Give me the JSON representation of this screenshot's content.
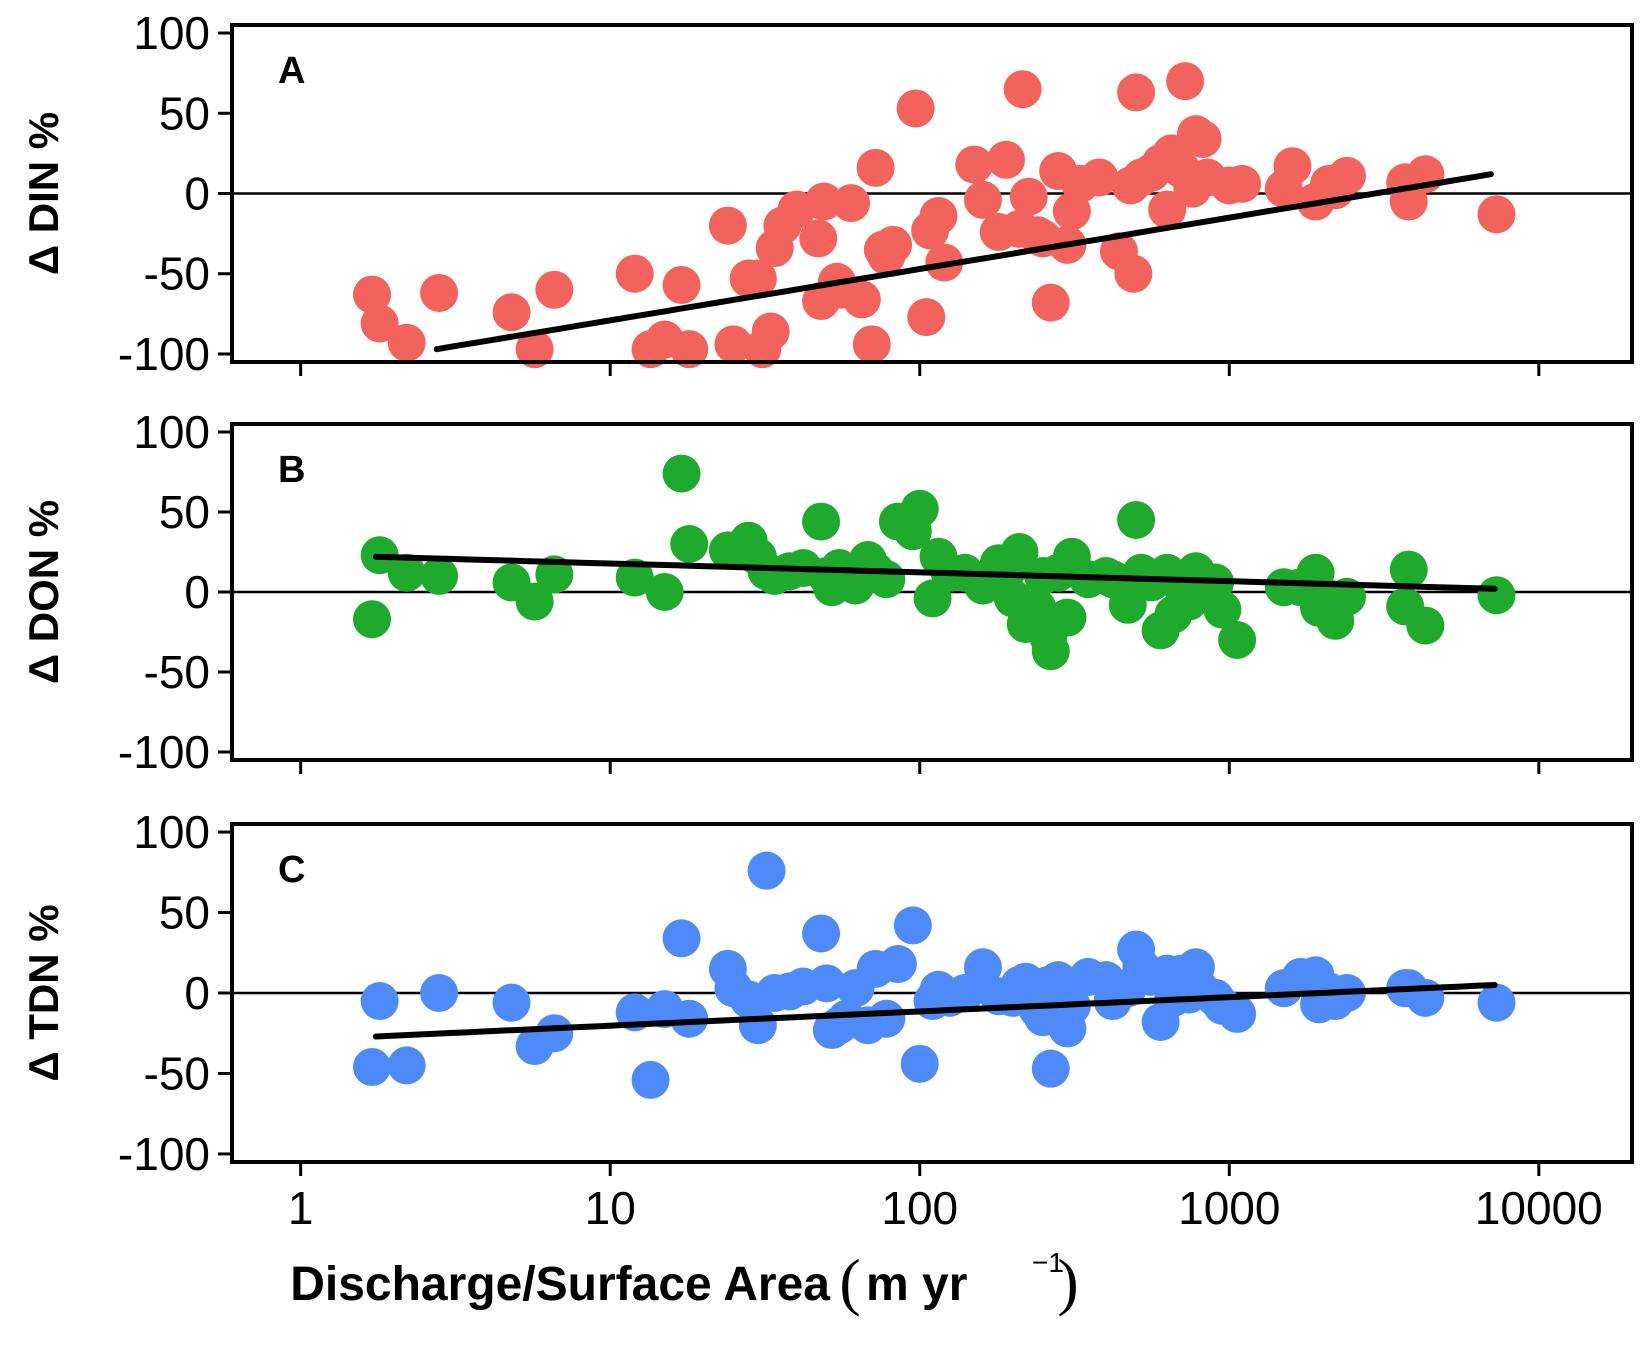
{
  "figure": {
    "xlabel_main": "Discharge/Surface Area",
    "xlabel_unit": "m yr",
    "xlabel_sup": "−1"
  },
  "chart_data": [
    {
      "type": "scatter",
      "panel": "A",
      "ylabel": "Δ DIN %",
      "xscale": "log",
      "xlim": [
        0.6,
        20000
      ],
      "ylim": [
        -105,
        105
      ],
      "xticks": [
        "1",
        "10",
        "100",
        "1000",
        "10000"
      ],
      "yticks": [
        "100",
        "50",
        "0",
        "-50",
        "-100"
      ],
      "color": "#F2635D",
      "zero_line": true,
      "points": [
        [
          1.7,
          -63
        ],
        [
          1.8,
          -81
        ],
        [
          2.2,
          -93
        ],
        [
          2.8,
          -62
        ],
        [
          4.8,
          -74
        ],
        [
          5.7,
          -97
        ],
        [
          6.6,
          -60
        ],
        [
          12,
          -50
        ],
        [
          13.5,
          -97
        ],
        [
          15,
          -91
        ],
        [
          17,
          -57
        ],
        [
          18,
          -97
        ],
        [
          24,
          -20
        ],
        [
          25,
          -94
        ],
        [
          28,
          -53
        ],
        [
          30,
          -53
        ],
        [
          31,
          -97
        ],
        [
          33,
          -86
        ],
        [
          34,
          -34
        ],
        [
          36,
          -20
        ],
        [
          40,
          -10
        ],
        [
          47,
          -28
        ],
        [
          48,
          -67
        ],
        [
          49,
          -5
        ],
        [
          54,
          -55
        ],
        [
          55,
          -60
        ],
        [
          60,
          -6
        ],
        [
          65,
          -66
        ],
        [
          70,
          -94
        ],
        [
          72,
          16
        ],
        [
          76,
          -35
        ],
        [
          78,
          -39
        ],
        [
          82,
          -32
        ],
        [
          97,
          53
        ],
        [
          105,
          -77
        ],
        [
          108,
          -23
        ],
        [
          115,
          -14
        ],
        [
          120,
          -43
        ],
        [
          150,
          18
        ],
        [
          160,
          -4
        ],
        [
          180,
          -24
        ],
        [
          190,
          21
        ],
        [
          210,
          -22
        ],
        [
          215,
          65
        ],
        [
          225,
          -2
        ],
        [
          240,
          -26
        ],
        [
          250,
          -28
        ],
        [
          265,
          -68
        ],
        [
          280,
          14
        ],
        [
          300,
          -32
        ],
        [
          310,
          -11
        ],
        [
          330,
          6
        ],
        [
          380,
          10
        ],
        [
          440,
          -36
        ],
        [
          480,
          5
        ],
        [
          490,
          -50
        ],
        [
          500,
          63
        ],
        [
          520,
          10
        ],
        [
          560,
          13
        ],
        [
          600,
          19
        ],
        [
          630,
          -10
        ],
        [
          650,
          25
        ],
        [
          700,
          15
        ],
        [
          720,
          70
        ],
        [
          760,
          3
        ],
        [
          780,
          37
        ],
        [
          820,
          34
        ],
        [
          850,
          10
        ],
        [
          1000,
          5
        ],
        [
          1100,
          6
        ],
        [
          1500,
          3
        ],
        [
          1600,
          17
        ],
        [
          1900,
          -5
        ],
        [
          2100,
          6
        ],
        [
          2200,
          2
        ],
        [
          2400,
          11
        ],
        [
          3700,
          7
        ],
        [
          3800,
          -5
        ],
        [
          4300,
          12
        ],
        [
          7300,
          -13
        ]
      ],
      "fit": [
        [
          2.75,
          -97
        ],
        [
          7000,
          12
        ]
      ]
    },
    {
      "type": "scatter",
      "panel": "B",
      "ylabel": "Δ DON %",
      "xscale": "log",
      "xlim": [
        0.6,
        20000
      ],
      "ylim": [
        -105,
        105
      ],
      "xticks": [
        "1",
        "10",
        "100",
        "1000",
        "10000"
      ],
      "yticks": [
        "100",
        "50",
        "0",
        "-50",
        "-100"
      ],
      "color": "#1FAA2E",
      "zero_line": true,
      "points": [
        [
          1.7,
          -17
        ],
        [
          1.8,
          23
        ],
        [
          2.2,
          12
        ],
        [
          2.8,
          10
        ],
        [
          4.8,
          6
        ],
        [
          5.7,
          -6
        ],
        [
          6.6,
          11
        ],
        [
          12,
          9
        ],
        [
          15,
          0
        ],
        [
          17,
          74
        ],
        [
          18,
          30
        ],
        [
          24,
          26
        ],
        [
          27,
          27
        ],
        [
          28,
          32
        ],
        [
          30,
          22
        ],
        [
          32,
          13
        ],
        [
          34,
          10
        ],
        [
          38,
          13
        ],
        [
          42,
          15
        ],
        [
          48,
          44
        ],
        [
          50,
          10
        ],
        [
          52,
          3
        ],
        [
          55,
          15
        ],
        [
          58,
          8
        ],
        [
          62,
          4
        ],
        [
          68,
          20
        ],
        [
          72,
          13
        ],
        [
          78,
          8
        ],
        [
          85,
          44
        ],
        [
          95,
          38
        ],
        [
          100,
          52
        ],
        [
          110,
          -4
        ],
        [
          115,
          22
        ],
        [
          125,
          12
        ],
        [
          140,
          12
        ],
        [
          160,
          4
        ],
        [
          180,
          18
        ],
        [
          190,
          12
        ],
        [
          200,
          -4
        ],
        [
          210,
          25
        ],
        [
          220,
          -20
        ],
        [
          240,
          -10
        ],
        [
          250,
          10
        ],
        [
          260,
          -28
        ],
        [
          265,
          -37
        ],
        [
          280,
          12
        ],
        [
          300,
          -16
        ],
        [
          310,
          22
        ],
        [
          350,
          8
        ],
        [
          400,
          10
        ],
        [
          420,
          8
        ],
        [
          470,
          -8
        ],
        [
          500,
          45
        ],
        [
          520,
          12
        ],
        [
          560,
          6
        ],
        [
          600,
          -24
        ],
        [
          630,
          12
        ],
        [
          660,
          -14
        ],
        [
          700,
          4
        ],
        [
          740,
          -6
        ],
        [
          780,
          13
        ],
        [
          800,
          8
        ],
        [
          900,
          6
        ],
        [
          950,
          -11
        ],
        [
          1060,
          -30
        ],
        [
          1500,
          3
        ],
        [
          1700,
          3
        ],
        [
          1900,
          12
        ],
        [
          1950,
          -10
        ],
        [
          2100,
          -4
        ],
        [
          2200,
          -18
        ],
        [
          2400,
          -3
        ],
        [
          3700,
          -9
        ],
        [
          3800,
          14
        ],
        [
          4300,
          -21
        ],
        [
          7300,
          -2
        ]
      ],
      "fit": [
        [
          1.75,
          22
        ],
        [
          7200,
          2
        ]
      ]
    },
    {
      "type": "scatter",
      "panel": "C",
      "ylabel": "Δ TDN %",
      "xscale": "log",
      "xlim": [
        0.6,
        20000
      ],
      "ylim": [
        -105,
        105
      ],
      "xticks": [
        "1",
        "10",
        "100",
        "1000",
        "10000"
      ],
      "yticks": [
        "100",
        "50",
        "0",
        "-50",
        "-100"
      ],
      "color": "#4F8BF8",
      "zero_line": true,
      "points": [
        [
          1.7,
          -46
        ],
        [
          1.8,
          -5
        ],
        [
          2.2,
          -45
        ],
        [
          2.8,
          0
        ],
        [
          4.8,
          -6
        ],
        [
          5.7,
          -33
        ],
        [
          6.6,
          -25
        ],
        [
          12,
          -12
        ],
        [
          13.5,
          -54
        ],
        [
          15,
          -10
        ],
        [
          17,
          34
        ],
        [
          18,
          -16
        ],
        [
          24,
          15
        ],
        [
          25,
          3
        ],
        [
          28,
          -4
        ],
        [
          30,
          -20
        ],
        [
          32,
          76
        ],
        [
          34,
          0
        ],
        [
          38,
          1
        ],
        [
          42,
          4
        ],
        [
          48,
          37
        ],
        [
          50,
          6
        ],
        [
          52,
          -23
        ],
        [
          55,
          -20
        ],
        [
          58,
          -16
        ],
        [
          62,
          3
        ],
        [
          68,
          -20
        ],
        [
          72,
          15
        ],
        [
          78,
          -16
        ],
        [
          85,
          18
        ],
        [
          95,
          42
        ],
        [
          100,
          -44
        ],
        [
          110,
          -5
        ],
        [
          115,
          2
        ],
        [
          125,
          -3
        ],
        [
          140,
          0
        ],
        [
          160,
          16
        ],
        [
          180,
          -2
        ],
        [
          200,
          -3
        ],
        [
          210,
          5
        ],
        [
          220,
          7
        ],
        [
          240,
          -10
        ],
        [
          250,
          -15
        ],
        [
          260,
          5
        ],
        [
          265,
          -47
        ],
        [
          280,
          8
        ],
        [
          300,
          -22
        ],
        [
          310,
          -8
        ],
        [
          350,
          10
        ],
        [
          400,
          8
        ],
        [
          420,
          -5
        ],
        [
          470,
          3
        ],
        [
          500,
          27
        ],
        [
          520,
          16
        ],
        [
          560,
          10
        ],
        [
          600,
          -18
        ],
        [
          630,
          12
        ],
        [
          660,
          -3
        ],
        [
          700,
          12
        ],
        [
          740,
          -1
        ],
        [
          780,
          16
        ],
        [
          800,
          3
        ],
        [
          900,
          -3
        ],
        [
          950,
          -8
        ],
        [
          1060,
          -13
        ],
        [
          1500,
          3
        ],
        [
          1700,
          10
        ],
        [
          1900,
          11
        ],
        [
          1950,
          -7
        ],
        [
          2100,
          1
        ],
        [
          2200,
          -5
        ],
        [
          2400,
          0
        ],
        [
          3700,
          3
        ],
        [
          3800,
          3
        ],
        [
          4300,
          -3
        ],
        [
          7300,
          -6
        ]
      ],
      "fit": [
        [
          1.75,
          -27
        ],
        [
          7200,
          5
        ]
      ]
    }
  ]
}
